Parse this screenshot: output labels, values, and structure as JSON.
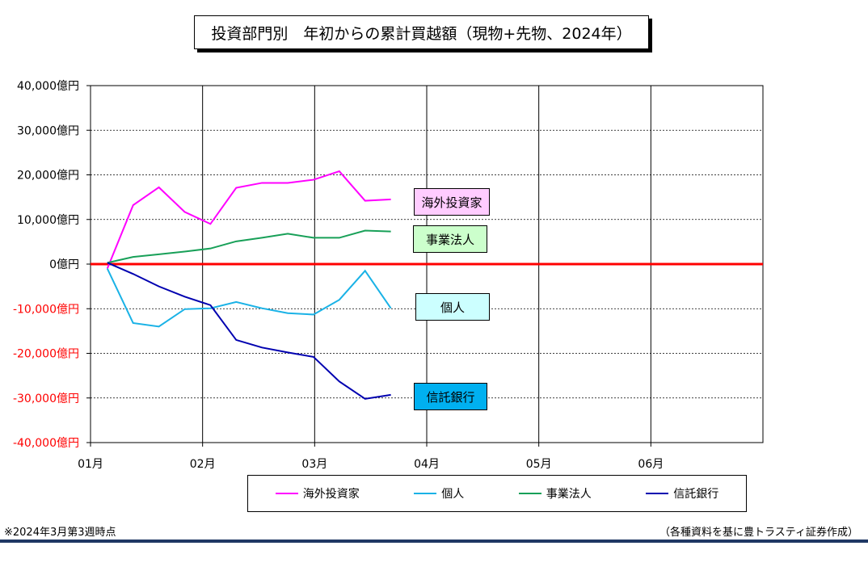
{
  "chart_data": {
    "type": "line",
    "title": "投資部門別　年初からの累計買越額（現物+先物、2024年）",
    "xlabel": "",
    "ylabel": "",
    "x_tick_labels": [
      "01月",
      "02月",
      "03月",
      "04月",
      "05月",
      "06月"
    ],
    "x_range": [
      0,
      6
    ],
    "y_tick_labels": [
      "40,000億円",
      "30,000億円",
      "20,000億円",
      "10,000億円",
      "0億円",
      "-10,000億円",
      "-20,000億円",
      "-30,000億円",
      "-40,000億円"
    ],
    "y_tick_values": [
      40000,
      30000,
      20000,
      10000,
      0,
      -10000,
      -20000,
      -30000,
      -40000
    ],
    "ylim": [
      -40000,
      40000
    ],
    "zero_line_color": "#ff0000",
    "negative_tick_color": "#ff0000",
    "grid": true,
    "legend_position": "bottom",
    "x": [
      0.15,
      0.38,
      0.61,
      0.84,
      1.07,
      1.3,
      1.53,
      1.76,
      1.99,
      2.22,
      2.45,
      2.68
    ],
    "series": [
      {
        "name": "海外投資家",
        "color": "#ff00ff",
        "values": [
          -1000,
          13200,
          17200,
          11700,
          9000,
          17100,
          18200,
          18200,
          18900,
          20800,
          14200,
          14500
        ]
      },
      {
        "name": "個人",
        "color": "#1ab2e6",
        "values": [
          -1000,
          -13200,
          -14000,
          -10100,
          -9900,
          -8500,
          -9900,
          -11000,
          -11300,
          -8000,
          -1500,
          -9900
        ]
      },
      {
        "name": "事業法人",
        "color": "#18a058",
        "values": [
          300,
          1600,
          2200,
          2800,
          3500,
          5100,
          5900,
          6800,
          5900,
          5900,
          7500,
          7300
        ]
      },
      {
        "name": "信託銀行",
        "color": "#0000b0",
        "values": [
          300,
          -2200,
          -5000,
          -7300,
          -9200,
          -17000,
          -18700,
          -19800,
          -20800,
          -26300,
          -30200,
          -29300
        ]
      }
    ],
    "tags": [
      {
        "text": "海外投資家",
        "bg": "#ffccff"
      },
      {
        "text": "事業法人",
        "bg": "#ccffcc"
      },
      {
        "text": "個人",
        "bg": "#ccffff"
      },
      {
        "text": "信託銀行",
        "bg": "#00b0f0"
      }
    ],
    "notes": {
      "left": "※2024年3月第3週時点",
      "right": "（各種資料を基に豊トラスティ証券作成）"
    }
  }
}
